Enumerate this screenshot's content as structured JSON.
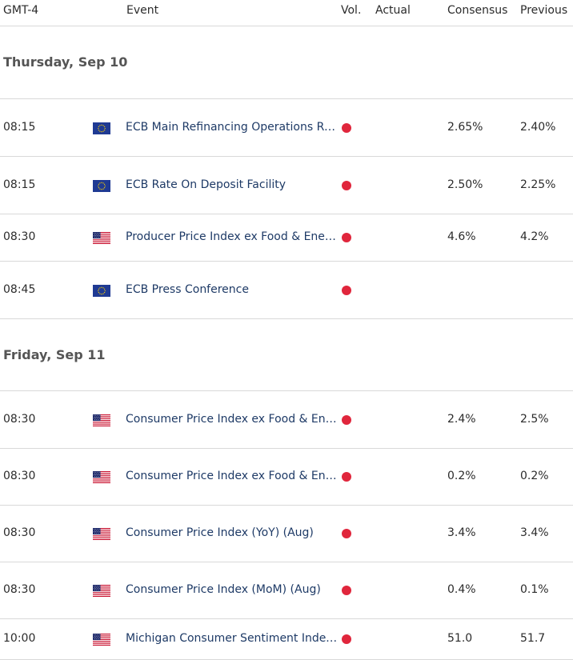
{
  "header": {
    "timezone": "GMT-4",
    "event": "Event",
    "vol": "Vol.",
    "actual": "Actual",
    "consensus": "Consensus",
    "previous": "Previous"
  },
  "days": [
    {
      "label": "Thursday, Sep 10",
      "events": [
        {
          "time": "08:15",
          "country": "eu-flag-icon",
          "event": "ECB Main Refinancing Operations Rate",
          "volatility": "high",
          "actual": "",
          "consensus": "2.65%",
          "previous": "2.40%"
        },
        {
          "time": "08:15",
          "country": "eu-flag-icon",
          "event": "ECB Rate On Deposit Facility",
          "volatility": "high",
          "actual": "",
          "consensus": "2.50%",
          "previous": "2.25%"
        },
        {
          "time": "08:30",
          "country": "us-flag-icon",
          "event": "Producer Price Index ex Food & Energy (YoY) (Aug)",
          "volatility": "high",
          "actual": "",
          "consensus": "4.6%",
          "previous": "4.2%"
        },
        {
          "time": "08:45",
          "country": "eu-flag-icon",
          "event": "ECB Press Conference",
          "volatility": "high",
          "actual": "",
          "consensus": "",
          "previous": ""
        }
      ]
    },
    {
      "label": "Friday, Sep 11",
      "events": [
        {
          "time": "08:30",
          "country": "us-flag-icon",
          "event": "Consumer Price Index ex Food & Energy (YoY) (Aug)",
          "volatility": "high",
          "actual": "",
          "consensus": "2.4%",
          "previous": "2.5%"
        },
        {
          "time": "08:30",
          "country": "us-flag-icon",
          "event": "Consumer Price Index ex Food & Energy (MoM) (Aug)",
          "volatility": "high",
          "actual": "",
          "consensus": "0.2%",
          "previous": "0.2%"
        },
        {
          "time": "08:30",
          "country": "us-flag-icon",
          "event": "Consumer Price Index (YoY) (Aug)",
          "volatility": "high",
          "actual": "",
          "consensus": "3.4%",
          "previous": "3.4%"
        },
        {
          "time": "08:30",
          "country": "us-flag-icon",
          "event": "Consumer Price Index (MoM) (Aug)",
          "volatility": "high",
          "actual": "",
          "consensus": "0.4%",
          "previous": "0.1%"
        },
        {
          "time": "10:00",
          "country": "us-flag-icon",
          "event": "Michigan Consumer Sentiment Index (Sep) PREL",
          "volatility": "high",
          "actual": "",
          "consensus": "51.0",
          "previous": "51.7"
        }
      ]
    }
  ],
  "colors": {
    "high_volatility": "#e0263c",
    "event_text": "#1e3a66",
    "divider": "#d9d9d9"
  }
}
